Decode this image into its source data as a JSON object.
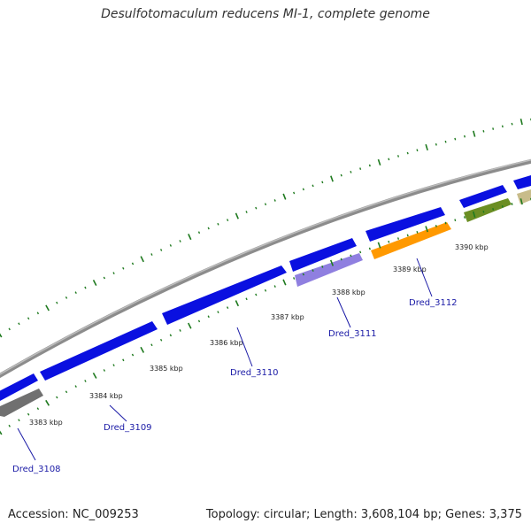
{
  "title": "Desulfotomaculum reducens MI-1, complete genome",
  "footer": {
    "accession": "Accession: NC_009253",
    "summary": "Topology: circular; Length: 3,608,104 bp; Genes: 3,375"
  },
  "colors": {
    "backbone": "#8c8c8c",
    "forward_gene": "#0a10e0",
    "tick_mark": "#1f7a1f",
    "label_line": "#1a1aa6"
  },
  "ticks": [
    {
      "label": "3383 kbp"
    },
    {
      "label": "3384 kbp"
    },
    {
      "label": "3385 kbp"
    },
    {
      "label": "3386 kbp"
    },
    {
      "label": "3387 kbp"
    },
    {
      "label": "3388 kbp"
    },
    {
      "label": "3389 kbp"
    },
    {
      "label": "3390 kbp"
    }
  ],
  "gene_labels": [
    {
      "label": "Dred_3108"
    },
    {
      "label": "Dred_3109"
    },
    {
      "label": "Dred_3110"
    },
    {
      "label": "Dred_3111"
    },
    {
      "label": "Dred_3112"
    }
  ],
  "reverse_gene_colors": [
    "#707070",
    "#8f7fe0",
    "#ff9900",
    "#6b8e23",
    "#c8bc8a"
  ]
}
